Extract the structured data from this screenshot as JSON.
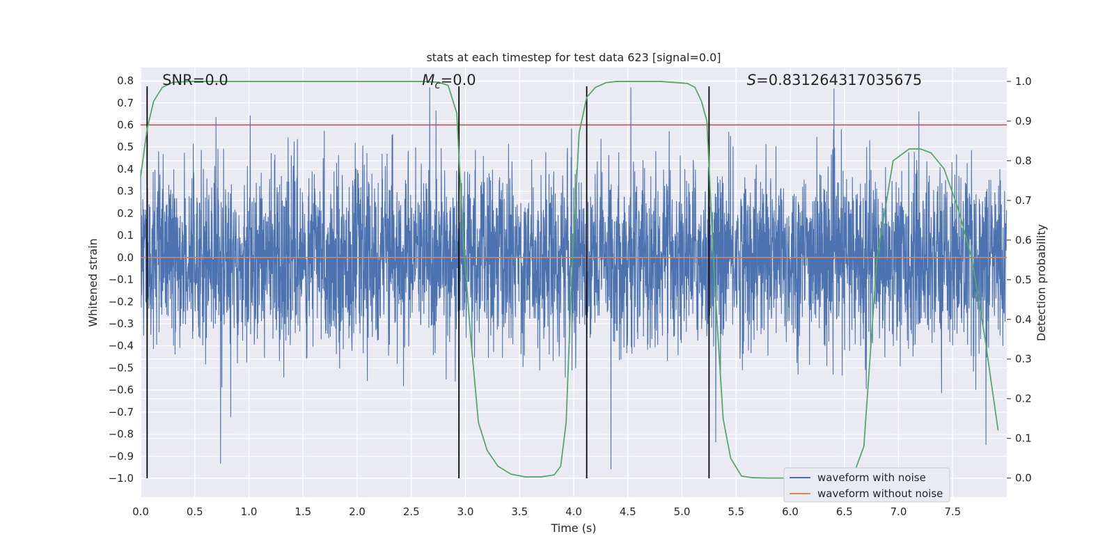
{
  "chart_data": {
    "type": "line",
    "title": "stats at each timestep for test data 623 [signal=0.0]",
    "xlabel": "Time (s)",
    "ylabel": "Whitened strain",
    "y2label": "Detection probability",
    "xlim": [
      0.0,
      8.0
    ],
    "ylim": [
      -1.085,
      0.86
    ],
    "y2lim": [
      -0.048,
      1.035
    ],
    "xticks": [
      "0.0",
      "0.5",
      "1.0",
      "1.5",
      "2.0",
      "2.5",
      "3.0",
      "3.5",
      "4.0",
      "4.5",
      "5.0",
      "5.5",
      "6.0",
      "6.5",
      "7.0",
      "7.5"
    ],
    "yticks": [
      "0.8",
      "0.7",
      "0.6",
      "0.5",
      "0.4",
      "0.3",
      "0.2",
      "0.1",
      "0.0",
      "-0.1",
      "-0.2",
      "-0.3",
      "-0.4",
      "-0.5",
      "-0.6",
      "-0.7",
      "-0.8",
      "-0.9",
      "-1.0"
    ],
    "y2ticks": [
      "1.0",
      "0.9",
      "0.8",
      "0.7",
      "0.6",
      "0.5",
      "0.4",
      "0.3",
      "0.2",
      "0.1",
      "0.0"
    ],
    "annotations": [
      {
        "text": "SNR=0.0",
        "x": 0.2,
        "y": 0.8
      },
      {
        "text": "=0.0",
        "math_prefix": "M",
        "math_sub": "c",
        "x": 2.6,
        "y": 0.8
      },
      {
        "text": "=0.831264317035675",
        "math_prefix": "S",
        "x": 5.6,
        "y": 0.8
      }
    ],
    "threshold_line": {
      "y": 0.6,
      "color": "#c44e52"
    },
    "vertical_lines": [
      0.06,
      2.94,
      4.12,
      5.25
    ],
    "series": [
      {
        "name": "waveform with noise",
        "color": "#4c72b0",
        "description_type": "noise",
        "y_range": [
          -1.0,
          0.77
        ]
      },
      {
        "name": "waveform without noise",
        "color": "#dd8452",
        "x": [
          0.0,
          8.0
        ],
        "y": [
          0.0,
          0.0
        ]
      },
      {
        "color": "#55a868",
        "axis": "right",
        "x": [
          0.0,
          0.06,
          0.12,
          0.2,
          0.3,
          0.45,
          0.6,
          1.0,
          2.0,
          2.6,
          2.75,
          2.84,
          2.92,
          2.98,
          3.05,
          3.12,
          3.2,
          3.3,
          3.42,
          3.55,
          3.7,
          3.82,
          3.88,
          3.93,
          3.98,
          4.05,
          4.12,
          4.2,
          4.3,
          4.4,
          4.55,
          4.8,
          5.05,
          5.12,
          5.18,
          5.23,
          5.3,
          5.38,
          5.45,
          5.55,
          5.65,
          5.8,
          6.0,
          6.3,
          6.5,
          6.6,
          6.68,
          6.8,
          6.95,
          7.1,
          7.2,
          7.3,
          7.42,
          7.55,
          7.68,
          7.8,
          7.92
        ],
        "y": [
          0.76,
          0.88,
          0.95,
          0.985,
          0.998,
          1.0,
          1.0,
          1.0,
          1.0,
          1.0,
          0.998,
          0.99,
          0.92,
          0.6,
          0.35,
          0.14,
          0.07,
          0.03,
          0.01,
          0.003,
          0.003,
          0.008,
          0.03,
          0.14,
          0.5,
          0.87,
          0.96,
          0.985,
          0.997,
          1.0,
          1.0,
          1.0,
          0.995,
          0.985,
          0.95,
          0.9,
          0.5,
          0.15,
          0.05,
          0.005,
          0.001,
          0.0,
          0.0,
          0.0,
          0.002,
          0.02,
          0.08,
          0.55,
          0.8,
          0.83,
          0.83,
          0.82,
          0.78,
          0.68,
          0.55,
          0.35,
          0.12
        ]
      }
    ],
    "legend": {
      "placement": "bottom-right"
    },
    "grid": true,
    "colors": {
      "background": "#eaeaf2",
      "grid": "#ffffff",
      "axis_text": "#262626"
    }
  }
}
